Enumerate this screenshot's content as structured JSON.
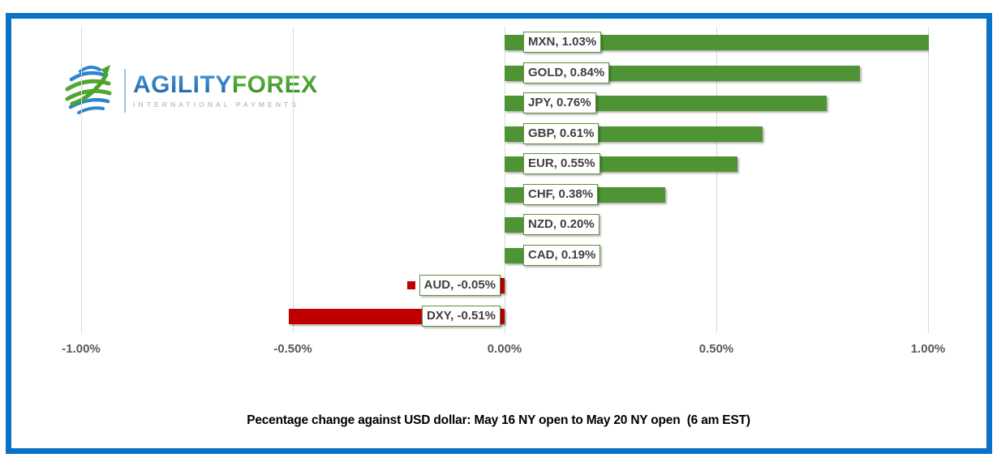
{
  "frame": {
    "border_color": "#0a72c6"
  },
  "brand": {
    "name_part1": "AGILITY",
    "name_part2": "FOREX",
    "tagline": "INTERNATIONAL PAYMENTS"
  },
  "chart_data": {
    "type": "bar",
    "orientation": "horizontal",
    "title": "Pecentage change against USD dollar: May 16 NY open to May 20 NY open  (6 am EST)",
    "categories": [
      "MXN",
      "GOLD",
      "JPY",
      "GBP",
      "EUR",
      "CHF",
      "NZD",
      "CAD",
      "AUD",
      "DXY"
    ],
    "values": [
      1.03,
      0.84,
      0.76,
      0.61,
      0.55,
      0.38,
      0.2,
      0.19,
      -0.05,
      -0.51
    ],
    "labels": [
      "MXN, 1.03%",
      "GOLD, 0.84%",
      "JPY, 0.76%",
      "GBP, 0.61%",
      "EUR, 0.55%",
      "CHF, 0.38%",
      "NZD, 0.20%",
      "CAD, 0.19%",
      "AUD, -0.05%",
      "DXY, -0.51%"
    ],
    "xlim": [
      -1.0,
      1.0
    ],
    "x_ticks": [
      "-1.00%",
      "-0.50%",
      "0.00%",
      "0.50%",
      "1.00%"
    ],
    "x_tick_values": [
      -1.0,
      -0.5,
      0.0,
      0.5,
      1.0
    ],
    "grid": "vertical",
    "legend_position": "none",
    "positive_color": "#4e9434",
    "negative_color": "#c00000",
    "label_border_color": "#5e8f3f",
    "gridline_color": "#d9d9d9"
  }
}
